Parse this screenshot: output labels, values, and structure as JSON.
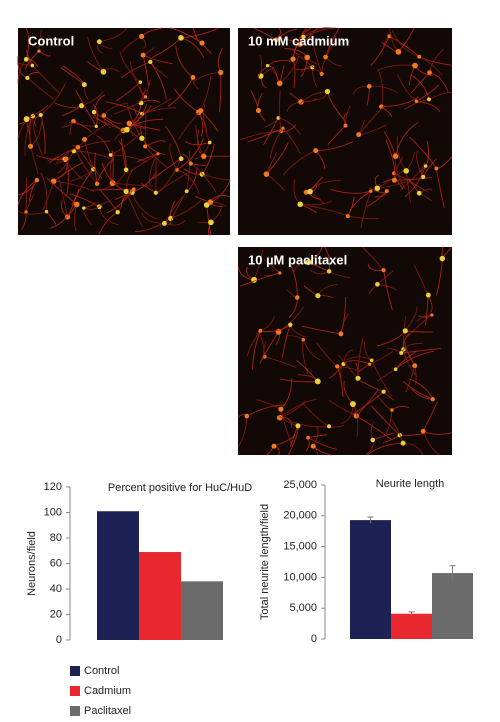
{
  "panels": [
    {
      "label": "Control"
    },
    {
      "label": "10 mM cadmium"
    },
    {
      "label": "10 µM paclitaxel"
    }
  ],
  "legend": {
    "items": [
      {
        "label": "Control",
        "color": "#1e2154"
      },
      {
        "label": "Cadmium",
        "color": "#e8282e"
      },
      {
        "label": "Paclitaxel",
        "color": "#6b6b6b"
      }
    ]
  },
  "chart_data": [
    {
      "type": "bar",
      "title": "Percent positive for HuC/HuD",
      "ylabel": "Neurons/field",
      "values": [
        101,
        69,
        46
      ],
      "ylim": [
        0,
        120
      ],
      "yticks": [
        0,
        20,
        40,
        60,
        80,
        100,
        120
      ]
    },
    {
      "type": "bar",
      "title": "Neurite length",
      "ylabel": "Total neurite length/field",
      "values": [
        19300,
        4100,
        10700
      ],
      "errors": [
        500,
        300,
        1200
      ],
      "ylim": [
        0,
        25000
      ],
      "yticks": [
        0,
        {
          "value": 5000,
          "label": "5,000"
        },
        {
          "value": 10000,
          "label": "10,000"
        },
        {
          "value": 15000,
          "label": "15,000"
        },
        {
          "value": 20000,
          "label": "20,000"
        },
        {
          "value": 25000,
          "label": "25,000"
        }
      ]
    }
  ]
}
